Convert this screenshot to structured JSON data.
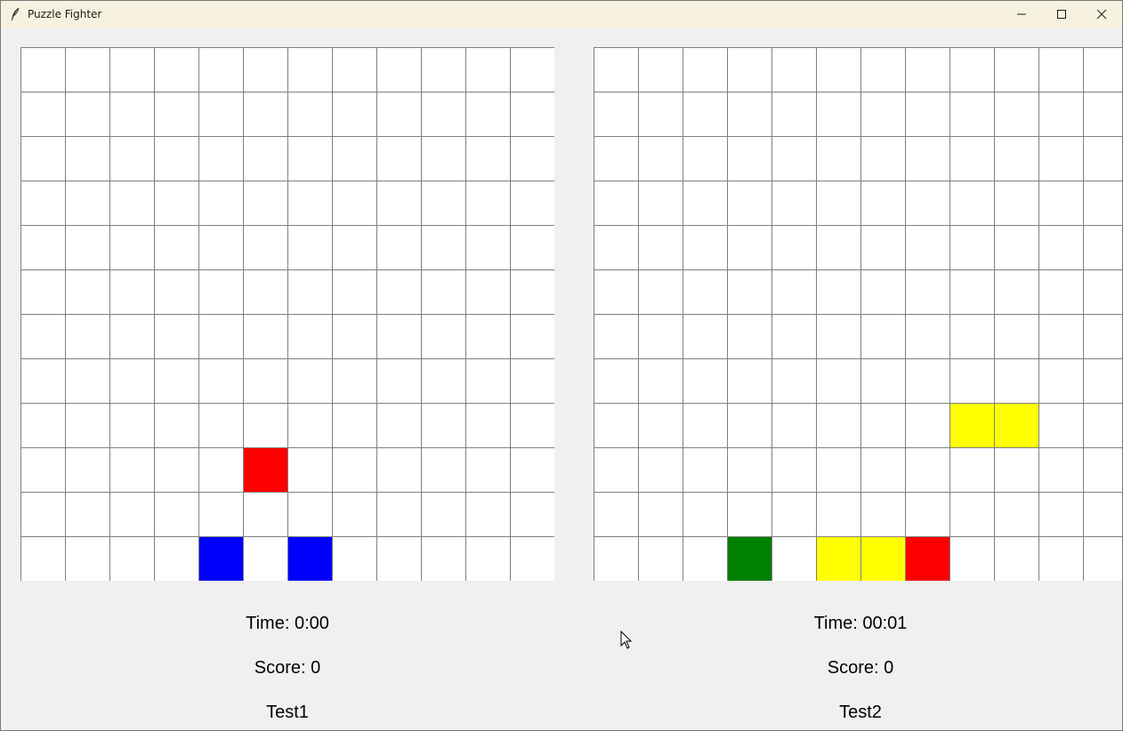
{
  "window": {
    "title": "Puzzle Fighter",
    "app_icon": "feather-icon",
    "controls": [
      "minimize-icon",
      "maximize-icon",
      "close-icon"
    ]
  },
  "colors": {
    "grid_line": "#808080",
    "cell_bg": "#ffffff",
    "red": "#ff0000",
    "blue": "#0000ff",
    "green": "#008000",
    "yellow": "#ffff00"
  },
  "grid": {
    "cols": 12,
    "rows": 12
  },
  "player1": {
    "time_label": "Time: 0:00",
    "score_label": "Score: 0",
    "name": "Test1",
    "blocks": [
      {
        "col": 5,
        "row": 9,
        "color": "red"
      },
      {
        "col": 4,
        "row": 11,
        "color": "blue"
      },
      {
        "col": 6,
        "row": 11,
        "color": "blue"
      }
    ]
  },
  "player2": {
    "time_label": "Time: 00:01",
    "score_label": "Score: 0",
    "name": "Test2",
    "blocks": [
      {
        "col": 8,
        "row": 8,
        "color": "yellow"
      },
      {
        "col": 9,
        "row": 8,
        "color": "yellow"
      },
      {
        "col": 3,
        "row": 11,
        "color": "green"
      },
      {
        "col": 5,
        "row": 11,
        "color": "yellow"
      },
      {
        "col": 6,
        "row": 11,
        "color": "yellow"
      },
      {
        "col": 7,
        "row": 11,
        "color": "red"
      }
    ]
  }
}
